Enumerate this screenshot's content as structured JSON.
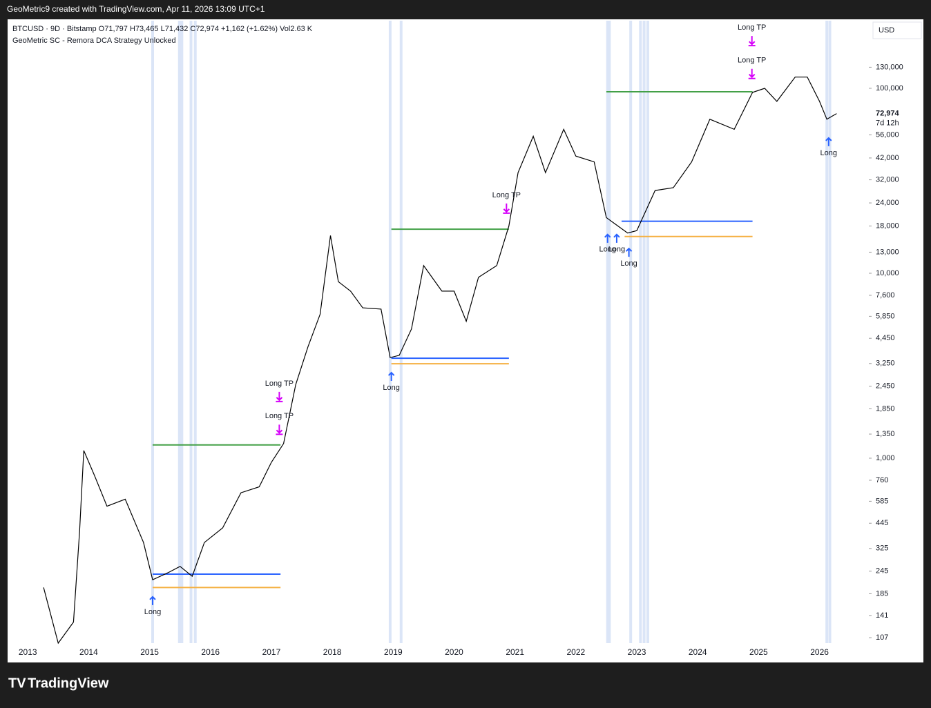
{
  "header": {
    "credit": "GeoMetric9 created with TradingView.com, Apr 11, 2026 13:09 UTC+1",
    "brand": "TradingView"
  },
  "chart_data": {
    "type": "line",
    "title": "BTCUSD · 9D · Bitstamp  O71,797  H73,465  L71,432  C72,974  +1,162 (+1.62%)  Vol2.63 K",
    "subtitle": "GeoMetric SC - Remora DCA Strategy Unlocked",
    "y_axis_label": "USD",
    "log_scale": true,
    "xlim": [
      2012.68,
      2026.81
    ],
    "ylim": [
      100,
      232000
    ],
    "xticks": [
      2013,
      2014,
      2015,
      2016,
      2017,
      2018,
      2019,
      2020,
      2021,
      2022,
      2023,
      2024,
      2025,
      2026
    ],
    "yticks": [
      107,
      141,
      185,
      245,
      325,
      445,
      585,
      760,
      {
        "value": 1000,
        "label": "1,000"
      },
      {
        "value": 1350,
        "label": "1,350"
      },
      {
        "value": 1850,
        "label": "1,850"
      },
      {
        "value": 2450,
        "label": "2,450"
      },
      {
        "value": 3250,
        "label": "3,250"
      },
      {
        "value": 4450,
        "label": "4,450"
      },
      {
        "value": 5850,
        "label": "5,850"
      },
      {
        "value": 7600,
        "label": "7,600"
      },
      {
        "value": 10000,
        "label": "10,000"
      },
      {
        "value": 13000,
        "label": "13,000"
      },
      {
        "value": 18000,
        "label": "18,000"
      },
      {
        "value": 24000,
        "label": "24,000"
      },
      {
        "value": 32000,
        "label": "32,000"
      },
      {
        "value": 42000,
        "label": "42,000"
      },
      {
        "value": 56000,
        "label": "56,000"
      },
      {
        "value": 100000,
        "label": "100,000"
      },
      {
        "value": 130000,
        "label": "130,000"
      }
    ],
    "x": [
      2013.26,
      2013.5,
      2013.75,
      2013.85,
      2013.92,
      2014.1,
      2014.3,
      2014.6,
      2014.9,
      2015.05,
      2015.3,
      2015.5,
      2015.7,
      2015.9,
      2016.2,
      2016.5,
      2016.8,
      2017.0,
      2017.2,
      2017.4,
      2017.6,
      2017.8,
      2017.97,
      2018.1,
      2018.3,
      2018.5,
      2018.8,
      2018.95,
      2019.1,
      2019.3,
      2019.5,
      2019.8,
      2020.0,
      2020.2,
      2020.4,
      2020.7,
      2020.9,
      2021.05,
      2021.3,
      2021.5,
      2021.8,
      2022.0,
      2022.3,
      2022.5,
      2022.85,
      2023.0,
      2023.3,
      2023.6,
      2023.9,
      2024.2,
      2024.6,
      2024.9,
      2025.1,
      2025.3,
      2025.6,
      2025.8,
      2026.0,
      2026.12,
      2026.28
    ],
    "series": [
      {
        "color": "#000000",
        "values": [
          200,
          100,
          130,
          400,
          1100,
          800,
          550,
          600,
          350,
          220,
          240,
          260,
          230,
          350,
          420,
          650,
          700,
          950,
          1200,
          2500,
          4000,
          6000,
          16000,
          9000,
          8000,
          6500,
          6400,
          3500,
          3600,
          5000,
          11000,
          8000,
          8000,
          5500,
          9500,
          11000,
          18000,
          35000,
          55000,
          35000,
          60000,
          43000,
          40000,
          20000,
          16500,
          17000,
          28000,
          29000,
          40000,
          68000,
          60000,
          95000,
          100000,
          85000,
          115000,
          115000,
          85000,
          68000,
          72974
        ]
      }
    ],
    "last_price": {
      "value": 72974,
      "label": "72,974",
      "countdown": "7d 12h"
    },
    "levels": [
      {
        "color": "#43a047",
        "x": [
          2015.05,
          2017.15
        ],
        "value": 1180
      },
      {
        "color": "#2962ff",
        "x": [
          2015.05,
          2017.15
        ],
        "value": 236
      },
      {
        "color": "#f5b041",
        "x": [
          2015.05,
          2017.15
        ],
        "value": 200
      },
      {
        "color": "#43a047",
        "x": [
          2018.97,
          2020.9
        ],
        "value": 17300
      },
      {
        "color": "#2962ff",
        "x": [
          2018.97,
          2020.9
        ],
        "value": 3470
      },
      {
        "color": "#f5b041",
        "x": [
          2018.97,
          2020.9
        ],
        "value": 3240
      },
      {
        "color": "#43a047",
        "x": [
          2022.5,
          2024.9
        ],
        "value": 95800
      },
      {
        "color": "#2962ff",
        "x": [
          2022.75,
          2024.9
        ],
        "value": 19100
      },
      {
        "color": "#f5b041",
        "x": [
          2022.8,
          2024.9
        ],
        "value": 15800
      }
    ],
    "highlights": [
      2015.05,
      2015.49,
      2015.53,
      2015.68,
      2015.75,
      2018.95,
      2019.13,
      2022.52,
      2022.55,
      2022.9,
      2023.06,
      2023.12,
      2023.18,
      2026.12,
      2026.17
    ],
    "signals": [
      {
        "label": "Long",
        "x": 2015.05,
        "value": 178,
        "color": "#2962ff"
      },
      {
        "label": "Long TP",
        "x": 2017.13,
        "value": 2060,
        "color": "#d500f9"
      },
      {
        "label": "Long TP",
        "x": 2017.13,
        "value": 1370,
        "color": "#d500f9"
      },
      {
        "label": "Long",
        "x": 2018.97,
        "value": 2900,
        "color": "#2962ff"
      },
      {
        "label": "Long TP",
        "x": 2020.86,
        "value": 21500,
        "color": "#d500f9"
      },
      {
        "label": "Long",
        "x": 2022.52,
        "value": 16200,
        "color": "#2962ff"
      },
      {
        "label": "Long",
        "x": 2022.67,
        "value": 16200,
        "color": "#2962ff"
      },
      {
        "label": "Long",
        "x": 2022.87,
        "value": 13600,
        "color": "#2962ff"
      },
      {
        "label": "Long TP",
        "x": 2024.89,
        "value": 173000,
        "color": "#d500f9"
      },
      {
        "label": "Long TP",
        "x": 2024.89,
        "value": 115000,
        "color": "#d500f9"
      },
      {
        "label": "Long",
        "x": 2026.15,
        "value": 53900,
        "color": "#2962ff"
      }
    ]
  }
}
